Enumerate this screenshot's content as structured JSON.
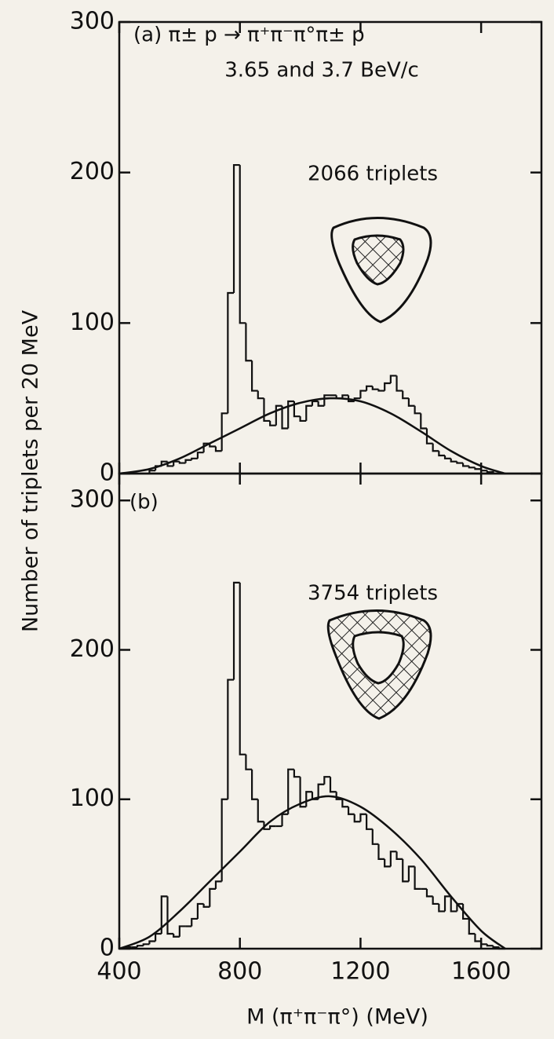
{
  "chart_data": [
    {
      "type": "histogram",
      "annotations": [
        "(a) π± p → π⁺π⁻π°π± p",
        "3.65 and 3.7 BeV/c",
        "2066 triplets"
      ],
      "ylabel": "Number of triplets per 20 MeV",
      "bins": [
        500,
        520,
        540,
        560,
        580,
        600,
        620,
        640,
        660,
        680,
        700,
        720,
        740,
        760,
        780,
        800,
        820,
        840,
        860,
        880,
        900,
        920,
        940,
        960,
        980,
        1000,
        1020,
        1040,
        1060,
        1080,
        1100,
        1120,
        1140,
        1160,
        1180,
        1200,
        1220,
        1240,
        1260,
        1280,
        1300,
        1320,
        1340,
        1360,
        1380,
        1400,
        1420,
        1440,
        1460,
        1480,
        1500,
        1520,
        1540,
        1560,
        1580,
        1600,
        1620,
        1640
      ],
      "values": [
        2,
        5,
        8,
        5,
        8,
        7,
        9,
        10,
        14,
        20,
        18,
        15,
        40,
        120,
        205,
        100,
        75,
        55,
        50,
        35,
        32,
        45,
        30,
        48,
        38,
        35,
        45,
        48,
        45,
        52,
        52,
        50,
        52,
        48,
        50,
        55,
        58,
        56,
        55,
        60,
        65,
        55,
        50,
        45,
        40,
        30,
        20,
        15,
        12,
        10,
        8,
        7,
        5,
        4,
        3,
        2,
        1
      ],
      "curve": {
        "x": [
          400,
          500,
          600,
          700,
          800,
          900,
          1000,
          1100,
          1200,
          1300,
          1400,
          1500,
          1600,
          1680
        ],
        "y": [
          0,
          3,
          10,
          20,
          30,
          40,
          47,
          50,
          48,
          40,
          28,
          15,
          5,
          0
        ]
      },
      "color": "#111111",
      "xlim": [
        400,
        1800
      ],
      "xticks": [
        400,
        800,
        1200,
        1600
      ],
      "ylim": [
        0,
        300
      ],
      "yticks": [
        0,
        100,
        200,
        300
      ]
    },
    {
      "type": "histogram",
      "annotations": [
        "(b)",
        "3754 triplets"
      ],
      "xlabel": "M (π⁺π⁻π°) (MeV)",
      "bins": [
        420,
        440,
        460,
        480,
        500,
        520,
        540,
        560,
        580,
        600,
        620,
        640,
        660,
        680,
        700,
        720,
        740,
        760,
        780,
        800,
        820,
        840,
        860,
        880,
        900,
        920,
        940,
        960,
        980,
        1000,
        1020,
        1040,
        1060,
        1080,
        1100,
        1120,
        1140,
        1160,
        1180,
        1200,
        1220,
        1240,
        1260,
        1280,
        1300,
        1320,
        1340,
        1360,
        1380,
        1400,
        1420,
        1440,
        1460,
        1480,
        1500,
        1520,
        1540,
        1560,
        1580,
        1600,
        1620,
        1640,
        1660,
        1680
      ],
      "values": [
        1,
        1,
        2,
        3,
        5,
        10,
        35,
        10,
        8,
        15,
        15,
        20,
        30,
        28,
        40,
        45,
        100,
        180,
        245,
        130,
        120,
        100,
        85,
        80,
        82,
        82,
        90,
        120,
        115,
        95,
        105,
        100,
        110,
        115,
        105,
        100,
        95,
        90,
        85,
        90,
        80,
        70,
        60,
        55,
        65,
        60,
        45,
        55,
        40,
        40,
        35,
        30,
        25,
        35,
        25,
        30,
        20,
        10,
        5,
        3,
        2,
        1,
        0
      ],
      "curve": {
        "x": [
          400,
          500,
          600,
          700,
          800,
          900,
          1000,
          1100,
          1200,
          1300,
          1400,
          1500,
          1600,
          1680
        ],
        "y": [
          0,
          8,
          25,
          45,
          65,
          85,
          97,
          102,
          95,
          80,
          60,
          35,
          12,
          0
        ]
      },
      "color": "#111111",
      "xlim": [
        400,
        1800
      ],
      "xticks": [
        400,
        800,
        1200,
        1600
      ],
      "ylim": [
        0,
        318
      ],
      "yticks": [
        0,
        100,
        200,
        300
      ]
    }
  ]
}
